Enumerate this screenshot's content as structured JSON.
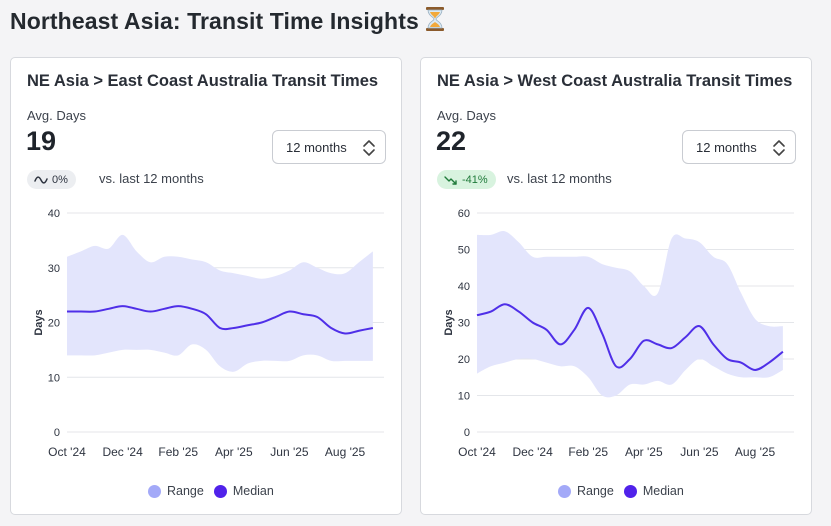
{
  "page": {
    "title": "Northeast Asia: Transit Time Insights"
  },
  "colors": {
    "range_fill": "#e3e5fc",
    "median_line": "#4f2fe8",
    "range_legend": "#a3a9f8",
    "median_legend": "#5022ea",
    "grid": "#e4e6ea",
    "axis_text": "#2e3440",
    "badge_good_bg": "#d8f3df",
    "badge_good_text": "#1f7a3a"
  },
  "icons": {
    "title": "hourglass-icon",
    "select": "chevron-up-down-icon",
    "neutral_badge": "tilde-trend-icon",
    "down_badge": "trend-down-icon"
  },
  "cards": [
    {
      "title": "NE Asia > East Coast Australia Transit Times",
      "metric_label": "Avg. Days",
      "metric_value": "19",
      "select_value": "12 months",
      "delta": "0%",
      "delta_state": "neutral",
      "compare_text": "vs. last 12 months",
      "legend_range": "Range",
      "legend_median": "Median"
    },
    {
      "title": "NE Asia > West Coast Australia Transit Times",
      "metric_label": "Avg. Days",
      "metric_value": "22",
      "select_value": "12 months",
      "delta": "-41%",
      "delta_state": "good",
      "compare_text": "vs. last 12 months",
      "legend_range": "Range",
      "legend_median": "Median"
    }
  ],
  "chart_data": [
    {
      "type": "area",
      "ylabel": "Days",
      "xlabel": "",
      "ylim": [
        0,
        40
      ],
      "yticks": [
        0,
        10,
        20,
        30,
        40
      ],
      "grid": true,
      "legend_position": "bottom",
      "x_tick_labels": [
        "Oct '24",
        "Dec '24",
        "Feb '25",
        "Apr '25",
        "Jun '25",
        "Aug '25"
      ],
      "x_tick_positions": [
        0,
        2,
        4,
        6,
        8,
        10
      ],
      "x_max": 11.4,
      "series": [
        {
          "name": "Median",
          "x": [
            0,
            0.5,
            1,
            1.5,
            2,
            2.5,
            3,
            3.5,
            4,
            4.5,
            5,
            5.5,
            6,
            6.5,
            7,
            7.5,
            8,
            8.5,
            9,
            9.5,
            10,
            10.5,
            11
          ],
          "values": [
            22,
            22,
            22,
            22.5,
            23,
            22.5,
            22,
            22.5,
            23,
            22.5,
            21.5,
            19,
            19,
            19.5,
            20,
            21,
            22,
            21.5,
            21,
            19,
            18,
            18.5,
            19
          ]
        },
        {
          "name": "Range",
          "x": [
            0,
            0.5,
            1,
            1.5,
            2,
            2.5,
            3,
            3.5,
            4,
            4.5,
            5,
            5.5,
            6,
            6.5,
            7,
            7.5,
            8,
            8.5,
            9,
            9.5,
            10,
            10.5,
            11
          ],
          "upper": [
            32,
            33,
            34,
            33.5,
            36,
            33,
            31,
            32,
            32,
            31.5,
            31,
            29.5,
            29,
            28.5,
            28,
            28.5,
            29.5,
            31,
            30,
            29,
            29,
            31,
            33
          ],
          "lower": [
            14,
            14,
            14,
            14.5,
            15,
            15,
            15,
            14.5,
            14,
            16,
            15,
            12,
            11,
            12.5,
            13,
            13,
            13,
            14,
            14,
            13,
            13,
            13,
            13
          ]
        }
      ]
    },
    {
      "type": "area",
      "ylabel": "Days",
      "xlabel": "",
      "ylim": [
        0,
        60
      ],
      "yticks": [
        0,
        10,
        20,
        30,
        40,
        50,
        60
      ],
      "grid": true,
      "legend_position": "bottom",
      "x_tick_labels": [
        "Oct '24",
        "Dec '24",
        "Feb '25",
        "Apr '25",
        "Jun '25",
        "Aug '25"
      ],
      "x_tick_positions": [
        0,
        2,
        4,
        6,
        8,
        10
      ],
      "x_max": 11.4,
      "series": [
        {
          "name": "Median",
          "x": [
            0,
            0.5,
            1,
            1.5,
            2,
            2.5,
            3,
            3.5,
            4,
            4.5,
            5,
            5.5,
            6,
            6.5,
            7,
            7.5,
            8,
            8.5,
            9,
            9.5,
            10,
            10.5,
            11
          ],
          "values": [
            32,
            33,
            35,
            33,
            30,
            28,
            24,
            28,
            34,
            27,
            18,
            20,
            25,
            24,
            23,
            26,
            29,
            24,
            20,
            19,
            17,
            19,
            22
          ]
        },
        {
          "name": "Range",
          "x": [
            0,
            0.5,
            1,
            1.5,
            2,
            2.5,
            3,
            3.5,
            4,
            4.5,
            5,
            5.5,
            6,
            6.5,
            7,
            7.5,
            8,
            8.5,
            9,
            9.5,
            10,
            10.5,
            11
          ],
          "upper": [
            54,
            54,
            55,
            52,
            48,
            48,
            48,
            48,
            48,
            46,
            45,
            44,
            40,
            38,
            53,
            53,
            52,
            48,
            46,
            38,
            31,
            29,
            29
          ],
          "lower": [
            16,
            18,
            19,
            20,
            20,
            19,
            18,
            18,
            15,
            10,
            10,
            13,
            13,
            14,
            13,
            17,
            20,
            18,
            16,
            15,
            15,
            15,
            17
          ]
        }
      ]
    }
  ]
}
